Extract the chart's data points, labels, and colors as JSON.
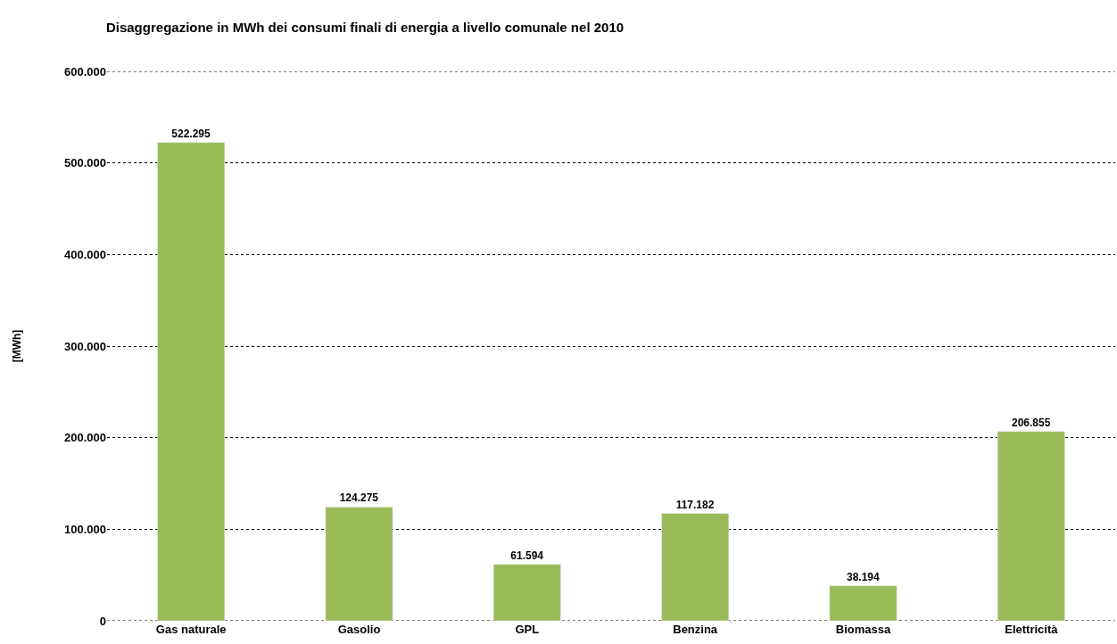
{
  "chart_data": {
    "type": "bar",
    "title": "Disaggregazione in MWh dei consumi finali di energia a livello comunale nel 2010",
    "ylabel": "[MWh]",
    "categories": [
      "Gas naturale",
      "Gasolio",
      "GPL",
      "Benzina",
      "Biomassa",
      "Elettricità"
    ],
    "values": [
      522295,
      124275,
      61594,
      117182,
      38194,
      206855
    ],
    "value_labels": [
      "522.295",
      "124.275",
      "61.594",
      "117.182",
      "38.194",
      "206.855"
    ],
    "color": "#9bbb59",
    "ylim": [
      0,
      600000
    ],
    "yticks": [
      0,
      {
        "value": 100000,
        "label": "100.000"
      },
      {
        "value": 200000,
        "label": "200.000"
      },
      {
        "value": 300000,
        "label": "300.000"
      },
      {
        "value": 400000,
        "label": "400.000"
      },
      {
        "value": 500000,
        "label": "500.000"
      },
      {
        "value": 600000,
        "label": "600.000"
      }
    ],
    "grid": "y"
  }
}
